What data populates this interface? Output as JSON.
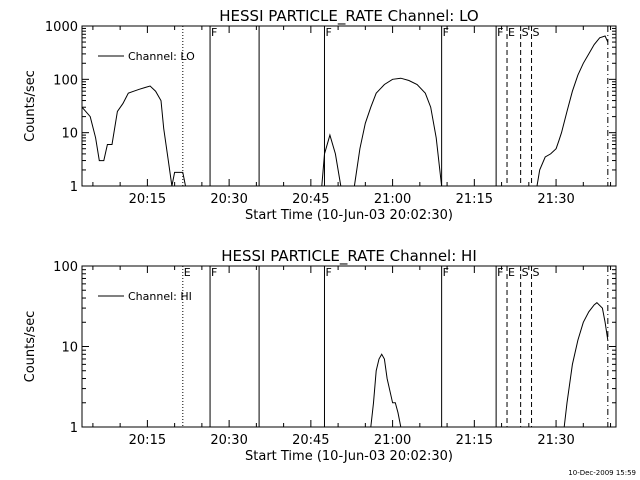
{
  "chart_data": [
    {
      "type": "line",
      "title": "HESSI PARTICLE_RATE Channel: LO",
      "xlabel": "Start Time (10-Jun-03 20:02:30)",
      "ylabel": "Counts/sec",
      "y_scale": "log",
      "xlim": [
        "20:03:00",
        "21:41:00"
      ],
      "ylim": [
        1,
        1000
      ],
      "x_tick_labels": [
        "20:15",
        "20:30",
        "20:45",
        "21:00",
        "21:15",
        "21:30"
      ],
      "y_tick_labels": [
        "1",
        "10",
        "100",
        "1000"
      ],
      "grid": false,
      "legend": {
        "position": "top-left",
        "entries": [
          "Channel: LO"
        ]
      },
      "series": [
        {
          "name": "Channel: LO",
          "points": [
            [
              "20:03:00",
              30
            ],
            [
              "20:04:30",
              20
            ],
            [
              "20:05:30",
              8
            ],
            [
              "20:06:10",
              3
            ],
            [
              "20:07:00",
              3
            ],
            [
              "20:07:40",
              6
            ],
            [
              "20:08:30",
              6
            ],
            [
              "20:09:30",
              25
            ],
            [
              "20:10:30",
              35
            ],
            [
              "20:11:30",
              55
            ],
            [
              "20:12:30",
              60
            ],
            [
              "20:13:30",
              65
            ],
            [
              "20:14:30",
              70
            ],
            [
              "20:15:30",
              75
            ],
            [
              "20:16:30",
              60
            ],
            [
              "20:17:30",
              40
            ],
            [
              "20:18:00",
              12
            ],
            [
              "20:18:50",
              3
            ],
            [
              "20:19:30",
              1
            ],
            [
              "20:20:00",
              1.8
            ],
            [
              "20:21:30",
              1.8
            ],
            [
              "20:22:00",
              1
            ]
          ]
        },
        {
          "name": "Channel: LO",
          "points": [
            [
              "20:47:00",
              1
            ],
            [
              "20:47:30",
              4
            ],
            [
              "20:48:30",
              9
            ],
            [
              "20:49:30",
              4
            ],
            [
              "20:50:30",
              1
            ]
          ]
        },
        {
          "name": "Channel: LO",
          "points": [
            [
              "20:53:00",
              1
            ],
            [
              "20:54:00",
              5
            ],
            [
              "20:55:00",
              15
            ],
            [
              "20:56:00",
              30
            ],
            [
              "20:57:00",
              55
            ],
            [
              "20:58:30",
              80
            ],
            [
              "21:00:00",
              100
            ],
            [
              "21:01:30",
              105
            ],
            [
              "21:03:00",
              95
            ],
            [
              "21:04:30",
              80
            ],
            [
              "21:06:00",
              55
            ],
            [
              "21:07:00",
              30
            ],
            [
              "21:08:00",
              8
            ],
            [
              "21:09:00",
              1
            ]
          ]
        },
        {
          "name": "Channel: LO",
          "points": [
            [
              "21:26:30",
              1
            ],
            [
              "21:27:00",
              2
            ],
            [
              "21:28:00",
              3.5
            ],
            [
              "21:29:00",
              4
            ],
            [
              "21:30:00",
              5
            ],
            [
              "21:30:30",
              7
            ],
            [
              "21:31:00",
              10
            ],
            [
              "21:32:00",
              25
            ],
            [
              "21:33:00",
              60
            ],
            [
              "21:34:00",
              120
            ],
            [
              "21:35:00",
              200
            ],
            [
              "21:36:00",
              300
            ],
            [
              "21:37:00",
              450
            ],
            [
              "21:38:00",
              600
            ],
            [
              "21:39:00",
              650
            ],
            [
              "21:39:30",
              500
            ]
          ]
        }
      ],
      "markers": [
        {
          "time": "20:21:30",
          "style": "dotted",
          "label": ""
        },
        {
          "time": "20:26:30",
          "style": "solid",
          "label": "F"
        },
        {
          "time": "20:35:30",
          "style": "solid",
          "label": ""
        },
        {
          "time": "20:47:30",
          "style": "solid",
          "label": "F"
        },
        {
          "time": "21:09:00",
          "style": "solid",
          "label": "F"
        },
        {
          "time": "21:19:00",
          "style": "solid",
          "label": "F"
        },
        {
          "time": "21:21:00",
          "style": "dashed",
          "label": "E"
        },
        {
          "time": "21:23:30",
          "style": "dashed",
          "label": "S"
        },
        {
          "time": "21:25:30",
          "style": "dashed",
          "label": "S"
        },
        {
          "time": "21:39:30",
          "style": "dashdot",
          "label": ""
        }
      ]
    },
    {
      "type": "line",
      "title": "HESSI PARTICLE_RATE Channel: HI",
      "xlabel": "Start Time (10-Jun-03 20:02:30)",
      "ylabel": "Counts/sec",
      "y_scale": "log",
      "xlim": [
        "20:03:00",
        "21:41:00"
      ],
      "ylim": [
        1,
        100
      ],
      "x_tick_labels": [
        "20:15",
        "20:30",
        "20:45",
        "21:00",
        "21:15",
        "21:30"
      ],
      "y_tick_labels": [
        "1",
        "10",
        "100"
      ],
      "grid": false,
      "legend": {
        "position": "top-left",
        "entries": [
          "Channel: HI"
        ]
      },
      "series": [
        {
          "name": "Channel: HI",
          "points": [
            [
              "20:56:00",
              1
            ],
            [
              "20:56:30",
              2
            ],
            [
              "20:57:00",
              5
            ],
            [
              "20:57:30",
              7
            ],
            [
              "20:58:00",
              8
            ],
            [
              "20:58:30",
              7
            ],
            [
              "20:59:00",
              4
            ],
            [
              "21:00:00",
              2
            ],
            [
              "21:00:30",
              2
            ],
            [
              "21:01:00",
              1.5
            ],
            [
              "21:01:30",
              1
            ]
          ]
        },
        {
          "name": "Channel: HI",
          "points": [
            [
              "21:31:30",
              1
            ],
            [
              "21:32:00",
              2
            ],
            [
              "21:33:00",
              6
            ],
            [
              "21:34:00",
              12
            ],
            [
              "21:35:00",
              20
            ],
            [
              "21:36:00",
              27
            ],
            [
              "21:37:00",
              33
            ],
            [
              "21:37:30",
              35
            ],
            [
              "21:38:30",
              30
            ],
            [
              "21:39:00",
              20
            ],
            [
              "21:39:30",
              12
            ]
          ]
        }
      ],
      "markers": [
        {
          "time": "20:21:30",
          "style": "dotted",
          "label": "E"
        },
        {
          "time": "20:26:30",
          "style": "solid",
          "label": "F"
        },
        {
          "time": "20:35:30",
          "style": "solid",
          "label": ""
        },
        {
          "time": "20:47:30",
          "style": "solid",
          "label": "F"
        },
        {
          "time": "21:09:00",
          "style": "solid",
          "label": "F"
        },
        {
          "time": "21:19:00",
          "style": "solid",
          "label": "F"
        },
        {
          "time": "21:21:00",
          "style": "dashed",
          "label": "E"
        },
        {
          "time": "21:23:30",
          "style": "dashed",
          "label": "S"
        },
        {
          "time": "21:25:30",
          "style": "dashed",
          "label": "S"
        },
        {
          "time": "21:39:30",
          "style": "dashdot",
          "label": ""
        }
      ]
    }
  ],
  "footer_timestamp": "10-Dec-2009 15:59"
}
